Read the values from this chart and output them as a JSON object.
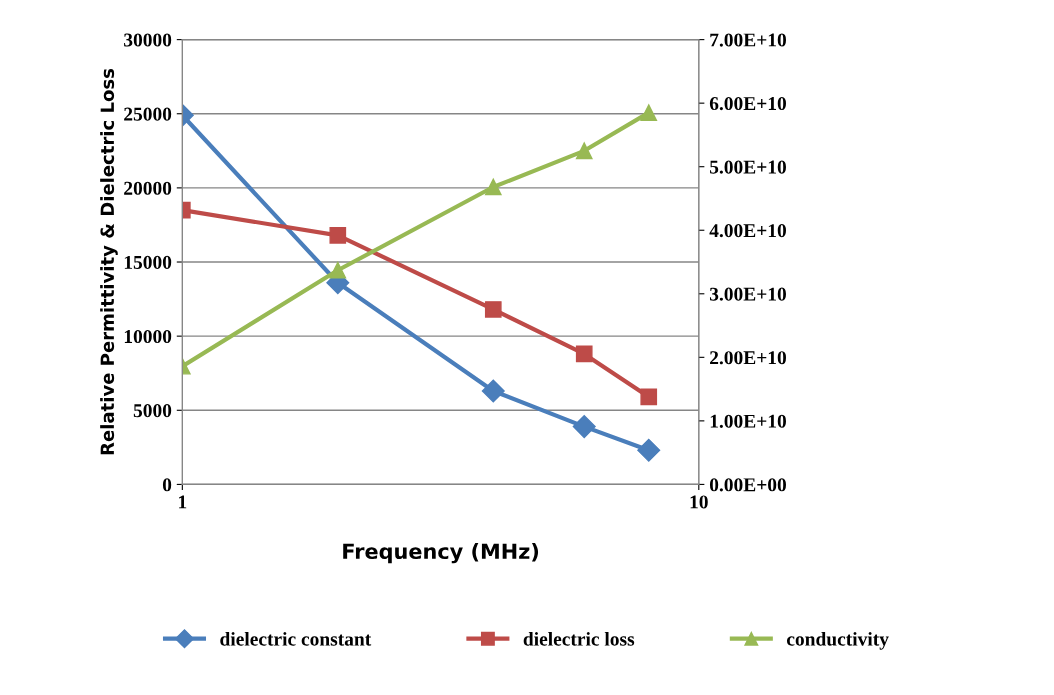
{
  "chart_data": {
    "type": "line",
    "xlabel": "Frequency (MHz)",
    "ylabel": "Relative Permittivity & Dielectric Loss",
    "x": [
      1,
      2,
      4,
      6,
      8
    ],
    "log": "x",
    "xlim": [
      1,
      10
    ],
    "xticks": [
      1,
      10
    ],
    "ylim": [
      0,
      30000
    ],
    "yticks": [
      0,
      5000,
      10000,
      15000,
      20000,
      25000,
      30000
    ],
    "y2lim": [
      0,
      70000000000
    ],
    "y2ticks": [
      {
        "value": 0,
        "label": "0.00E+00"
      },
      {
        "value": 10000000000,
        "label": "1.00E+10"
      },
      {
        "value": 20000000000,
        "label": "2.00E+10"
      },
      {
        "value": 30000000000,
        "label": "3.00E+10"
      },
      {
        "value": 40000000000,
        "label": "4.00E+10"
      },
      {
        "value": 50000000000,
        "label": "5.00E+10"
      },
      {
        "value": 60000000000,
        "label": "6.00E+10"
      },
      {
        "value": 70000000000,
        "label": "7.00E+10"
      }
    ],
    "grid": "y",
    "legend": "bottom",
    "series": [
      {
        "name": "dielectric constant",
        "color": "#4a7ebb",
        "marker": "diamond",
        "values": [
          24900,
          13600,
          6300,
          3900,
          2300
        ]
      },
      {
        "name": "dielectric loss",
        "color": "#be4b48",
        "marker": "square",
        "values": [
          18500,
          16800,
          11800,
          8800,
          5900
        ]
      },
      {
        "name": "conductivity",
        "color": "#98b954",
        "marker": "triangle",
        "axis": "y2",
        "values": [
          18600000000,
          33700000000,
          46800000000,
          52500000000,
          58500000000
        ]
      }
    ]
  }
}
